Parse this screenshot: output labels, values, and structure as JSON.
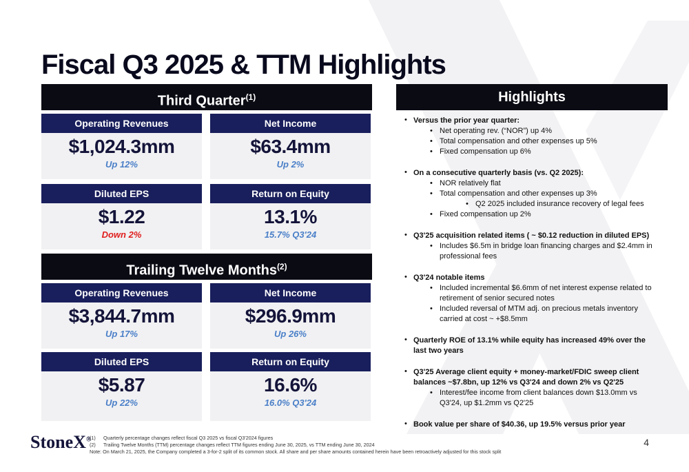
{
  "title": "Fiscal Q3 2025 & TTM Highlights",
  "third_quarter": {
    "header": "Third Quarter",
    "header_sup": "(1)",
    "tiles": [
      {
        "label": "Operating Revenues",
        "value": "$1,024.3mm",
        "sub": "Up 12%"
      },
      {
        "label": "Net Income",
        "value": "$63.4mm",
        "sub": "Up 2%"
      },
      {
        "label": "Diluted EPS",
        "value": "$1.22",
        "sub": "Down 2%"
      },
      {
        "label": "Return on Equity",
        "value": "13.1%",
        "sub": "15.7% Q3'24"
      }
    ]
  },
  "ttm": {
    "header": "Trailing Twelve Months",
    "header_sup": "(2)",
    "tiles": [
      {
        "label": "Operating Revenues",
        "value": "$3,844.7mm",
        "sub": "Up 17%"
      },
      {
        "label": "Net Income",
        "value": "$296.9mm",
        "sub": "Up 26%"
      },
      {
        "label": "Diluted EPS",
        "value": "$5.87",
        "sub": "Up 22%"
      },
      {
        "label": "Return on Equity",
        "value": "16.6%",
        "sub": "16.0% Q3'24"
      }
    ]
  },
  "highlights": {
    "header": "Highlights",
    "items": [
      {
        "text": "Versus the prior year quarter:",
        "sub": [
          "Net operating rev. (“NOR”) up 4%",
          "Total compensation and other expenses up 5%",
          "Fixed compensation up 6%"
        ]
      },
      {
        "text": "On a consecutive quarterly basis (vs. Q2 2025):",
        "sub": [
          "NOR relatively flat",
          "Total compensation and other expenses up 3%",
          "Q2 2025 included insurance recovery of legal fees",
          "Fixed compensation up 2%"
        ]
      },
      {
        "text": "Q3'25 acquisition related items ( ~ $0.12 reduction in diluted EPS)",
        "sub": [
          "Includes $6.5m in bridge loan financing charges and $2.4mm in professional fees"
        ]
      },
      {
        "text": "Q3'24 notable items",
        "sub": [
          "Included incremental $6.6mm of net interest expense related to retirement of senior secured notes",
          "Included reversal of MTM adj. on precious metals inventory carried at cost ~ +$8.5mm"
        ]
      },
      {
        "text": "Quarterly ROE of 13.1% while equity has increased 49% over the last two years"
      },
      {
        "text": "Q3'25 Average client equity + money-market/FDIC sweep client balances ~$7.8bn, up 12% vs Q3'24 and down 2% vs Q2'25",
        "sub": [
          "Interest/fee income from client balances down $13.0mm vs Q3'24, up $1.2mm vs Q2'25"
        ]
      },
      {
        "text": "Book value per share of $40.36, up 19.5% versus prior year"
      }
    ]
  },
  "footer": {
    "logo": "StoneX",
    "logo_mark": "®",
    "notes": [
      {
        "num": "(1)",
        "text": "Quarterly percentage changes reflect fiscal Q3 2025 vs fiscal Q3'2024 figures"
      },
      {
        "num": "(2)",
        "text": "Trailing Twelve Months (TTM) percentage changes reflect TTM figures ending June 30, 2025, vs TTM ending June 30, 2024"
      }
    ],
    "note_general": "Note: On March 21, 2025, the Company completed a 3-for-2 split of its common stock. All share and per share amounts contained herein have been retroactively adjusted for this stock split",
    "page_number": "4"
  },
  "colors": {
    "header_bg": "#0b0b14",
    "tile_head": "#191f5c",
    "positive": "#4a7fc8",
    "negative": "#e01e1e"
  }
}
